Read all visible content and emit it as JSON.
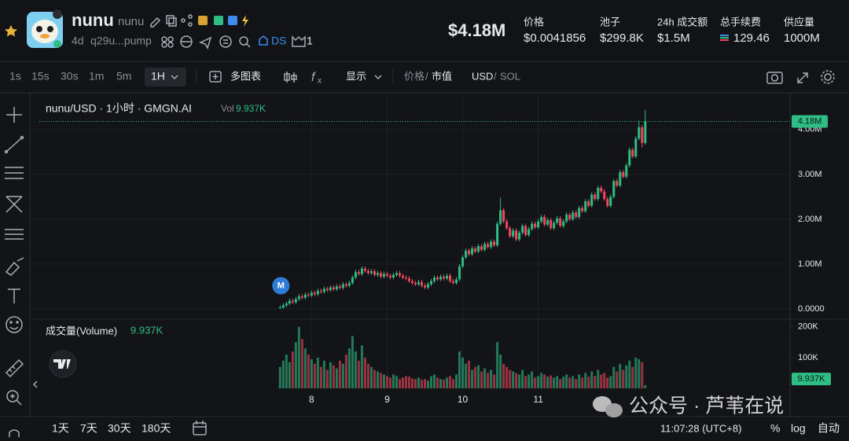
{
  "header": {
    "name": "nunu",
    "symbol": "nunu",
    "age": "4d",
    "address": "q29u...pump",
    "ds": "DS",
    "badge_count": "1",
    "market_cap": "$4.18M",
    "stats": [
      {
        "label": "价格",
        "value": "$0.0041856"
      },
      {
        "label": "池子",
        "value": "$299.8K"
      },
      {
        "label": "24h 成交额",
        "value": "$1.5M"
      },
      {
        "label": "总手续费",
        "value": "129.46"
      },
      {
        "label": "供应量",
        "value": "1000M"
      }
    ]
  },
  "toolbar": {
    "intervals": [
      "1s",
      "15s",
      "30s",
      "1m",
      "5m"
    ],
    "active_interval": "1H",
    "multi_chart": "多图表",
    "display": "显示",
    "price": "价格",
    "slash": "/",
    "mcap": "市值",
    "usd": "USD",
    "sol": "SOL"
  },
  "chart_data": {
    "type": "candlestick",
    "title": "nunu/USD · 1小时 · GMGN.AI",
    "vol_prefix": "Vol",
    "vol_label": "9.937K",
    "volume_title": "成交量(Volume)",
    "last_label": "4.18M",
    "marker": {
      "label": "M",
      "x": -10
    },
    "up_color": "#2ebd85",
    "down_color": "#f6465d",
    "grid": true,
    "xlim": [
      -86.5,
      152
    ],
    "xticks": [
      {
        "value": 0,
        "label": "8"
      },
      {
        "value": 24,
        "label": "9"
      },
      {
        "value": 48,
        "label": "10"
      },
      {
        "value": 72,
        "label": "11"
      }
    ],
    "ylim": [
      -0.21,
      4.75
    ],
    "yticks": [
      {
        "value": 0,
        "label": "0.0000"
      },
      {
        "value": 1,
        "label": "1.00M"
      },
      {
        "value": 2,
        "label": "2.00M"
      },
      {
        "value": 3,
        "label": "3.00M"
      },
      {
        "value": 4,
        "label": "4.00M"
      }
    ],
    "volume_lim": [
      0,
      220
    ],
    "volume_ticks": [
      {
        "value": 100,
        "label": "100K"
      },
      {
        "value": 200,
        "label": "200K"
      }
    ],
    "x": [
      -10,
      -9,
      -8,
      -7,
      -6,
      -5,
      -4,
      -3,
      -2,
      -1,
      0,
      1,
      2,
      3,
      4,
      5,
      6,
      7,
      8,
      9,
      10,
      11,
      12,
      13,
      14,
      15,
      16,
      17,
      18,
      19,
      20,
      21,
      22,
      23,
      24,
      25,
      26,
      27,
      28,
      29,
      30,
      31,
      32,
      33,
      34,
      35,
      36,
      37,
      38,
      39,
      40,
      41,
      42,
      43,
      44,
      45,
      46,
      47,
      48,
      49,
      50,
      51,
      52,
      53,
      54,
      55,
      56,
      57,
      58,
      59,
      60,
      61,
      62,
      63,
      64,
      65,
      66,
      67,
      68,
      69,
      70,
      71,
      72,
      73,
      74,
      75,
      76,
      77,
      78,
      79,
      80,
      81,
      82,
      83,
      84,
      85,
      86,
      87,
      88,
      89,
      90,
      91,
      92,
      93,
      94,
      95,
      96,
      97,
      98,
      99,
      100,
      101,
      102,
      103,
      104,
      105,
      106
    ],
    "open": [
      0.02,
      0.03,
      0.08,
      0.12,
      0.18,
      0.15,
      0.22,
      0.28,
      0.25,
      0.32,
      0.3,
      0.36,
      0.33,
      0.4,
      0.38,
      0.45,
      0.42,
      0.48,
      0.44,
      0.5,
      0.47,
      0.55,
      0.52,
      0.58,
      0.7,
      0.82,
      0.78,
      0.9,
      0.85,
      0.8,
      0.84,
      0.76,
      0.8,
      0.72,
      0.78,
      0.74,
      0.7,
      0.76,
      0.8,
      0.74,
      0.7,
      0.68,
      0.62,
      0.58,
      0.55,
      0.6,
      0.52,
      0.48,
      0.55,
      0.62,
      0.7,
      0.66,
      0.72,
      0.68,
      0.74,
      0.62,
      0.58,
      0.66,
      0.95,
      1.15,
      1.3,
      1.22,
      1.35,
      1.28,
      1.4,
      1.32,
      1.45,
      1.38,
      1.5,
      1.42,
      1.9,
      2.2,
      1.95,
      1.8,
      1.62,
      1.75,
      1.55,
      1.7,
      1.85,
      1.65,
      1.78,
      1.9,
      1.82,
      1.95,
      2.05,
      1.88,
      1.98,
      1.8,
      1.92,
      2.02,
      1.85,
      1.95,
      2.1,
      2.0,
      2.15,
      2.05,
      2.25,
      2.18,
      2.4,
      2.3,
      2.55,
      2.45,
      2.7,
      2.62,
      2.45,
      2.3,
      2.5,
      2.85,
      2.75,
      3.05,
      2.95,
      3.2,
      3.55,
      3.4,
      3.8,
      4.05,
      3.7
    ],
    "high": [
      0.08,
      0.13,
      0.17,
      0.23,
      0.23,
      0.27,
      0.33,
      0.33,
      0.37,
      0.37,
      0.41,
      0.41,
      0.45,
      0.45,
      0.5,
      0.5,
      0.53,
      0.53,
      0.55,
      0.55,
      0.6,
      0.6,
      0.63,
      0.75,
      0.87,
      0.87,
      0.95,
      0.95,
      0.9,
      0.89,
      0.89,
      0.85,
      0.85,
      0.83,
      0.83,
      0.79,
      0.81,
      0.85,
      0.85,
      0.79,
      0.75,
      0.73,
      0.67,
      0.63,
      0.65,
      0.65,
      0.57,
      0.6,
      0.67,
      0.75,
      0.75,
      0.77,
      0.77,
      0.79,
      0.79,
      0.67,
      0.71,
      1.0,
      1.2,
      1.35,
      1.35,
      1.4,
      1.4,
      1.45,
      1.45,
      1.5,
      1.5,
      1.55,
      1.55,
      1.95,
      2.48,
      2.25,
      2.0,
      1.85,
      1.8,
      1.8,
      1.75,
      1.9,
      1.9,
      1.83,
      1.95,
      1.95,
      2.0,
      2.1,
      2.1,
      2.03,
      2.03,
      1.97,
      2.07,
      2.07,
      2.0,
      2.15,
      2.15,
      2.2,
      2.2,
      2.3,
      2.3,
      2.45,
      2.45,
      2.6,
      2.6,
      2.75,
      2.75,
      2.67,
      2.5,
      2.55,
      2.9,
      2.9,
      3.1,
      3.1,
      3.25,
      3.6,
      3.6,
      3.85,
      4.2,
      4.1,
      4.44
    ],
    "low": [
      0.01,
      0.01,
      0.04,
      0.08,
      0.11,
      0.11,
      0.18,
      0.21,
      0.21,
      0.26,
      0.26,
      0.29,
      0.29,
      0.34,
      0.34,
      0.38,
      0.38,
      0.4,
      0.4,
      0.43,
      0.43,
      0.48,
      0.48,
      0.54,
      0.66,
      0.74,
      0.74,
      0.81,
      0.76,
      0.76,
      0.72,
      0.72,
      0.68,
      0.68,
      0.7,
      0.66,
      0.66,
      0.72,
      0.7,
      0.66,
      0.64,
      0.58,
      0.54,
      0.51,
      0.51,
      0.48,
      0.44,
      0.44,
      0.51,
      0.58,
      0.62,
      0.62,
      0.64,
      0.64,
      0.58,
      0.54,
      0.54,
      0.62,
      0.91,
      1.11,
      1.18,
      1.18,
      1.24,
      1.24,
      1.28,
      1.28,
      1.34,
      1.34,
      1.38,
      1.38,
      1.86,
      1.91,
      1.76,
      1.58,
      1.58,
      1.51,
      1.51,
      1.66,
      1.61,
      1.61,
      1.74,
      1.78,
      1.78,
      1.91,
      1.84,
      1.84,
      1.76,
      1.76,
      1.88,
      1.81,
      1.81,
      1.91,
      1.96,
      1.96,
      2.01,
      2.01,
      2.14,
      2.14,
      2.26,
      2.26,
      2.41,
      2.41,
      2.58,
      2.41,
      2.26,
      2.26,
      2.46,
      2.71,
      2.71,
      2.91,
      2.91,
      3.16,
      3.36,
      3.36,
      3.76,
      3.6,
      3.66
    ],
    "close": [
      0.03,
      0.08,
      0.12,
      0.18,
      0.15,
      0.22,
      0.28,
      0.25,
      0.32,
      0.3,
      0.36,
      0.33,
      0.4,
      0.38,
      0.45,
      0.42,
      0.48,
      0.44,
      0.5,
      0.47,
      0.55,
      0.52,
      0.58,
      0.7,
      0.82,
      0.78,
      0.9,
      0.85,
      0.8,
      0.84,
      0.76,
      0.8,
      0.72,
      0.78,
      0.74,
      0.7,
      0.76,
      0.8,
      0.74,
      0.7,
      0.68,
      0.62,
      0.58,
      0.55,
      0.6,
      0.52,
      0.48,
      0.55,
      0.62,
      0.7,
      0.66,
      0.72,
      0.68,
      0.74,
      0.62,
      0.58,
      0.66,
      0.95,
      1.15,
      1.3,
      1.22,
      1.35,
      1.28,
      1.4,
      1.32,
      1.45,
      1.38,
      1.5,
      1.42,
      1.9,
      2.2,
      1.95,
      1.8,
      1.62,
      1.75,
      1.55,
      1.7,
      1.85,
      1.65,
      1.78,
      1.9,
      1.82,
      1.95,
      2.05,
      1.88,
      1.98,
      1.8,
      1.92,
      2.02,
      1.85,
      1.95,
      2.1,
      2.0,
      2.15,
      2.05,
      2.25,
      2.18,
      2.4,
      2.3,
      2.55,
      2.45,
      2.7,
      2.62,
      2.45,
      2.3,
      2.5,
      2.85,
      2.75,
      3.05,
      2.95,
      3.2,
      3.55,
      3.4,
      3.8,
      4.05,
      3.7,
      4.18
    ],
    "volume": [
      70,
      90,
      110,
      85,
      120,
      150,
      200,
      160,
      130,
      110,
      95,
      80,
      100,
      70,
      90,
      60,
      85,
      75,
      65,
      90,
      80,
      110,
      130,
      170,
      120,
      90,
      140,
      100,
      80,
      70,
      60,
      55,
      50,
      45,
      40,
      35,
      45,
      40,
      30,
      35,
      40,
      38,
      32,
      30,
      35,
      28,
      30,
      25,
      40,
      45,
      35,
      30,
      28,
      35,
      40,
      30,
      45,
      120,
      100,
      80,
      90,
      60,
      70,
      75,
      55,
      65,
      50,
      60,
      45,
      150,
      110,
      80,
      70,
      60,
      55,
      50,
      45,
      60,
      40,
      45,
      55,
      35,
      40,
      50,
      45,
      38,
      42,
      35,
      40,
      30,
      38,
      45,
      35,
      40,
      30,
      45,
      35,
      50,
      38,
      55,
      40,
      60,
      45,
      50,
      35,
      40,
      70,
      55,
      80,
      60,
      75,
      90,
      70,
      100,
      95,
      85,
      9.937
    ]
  },
  "bottom_bar": {
    "ranges": [
      "1天",
      "7天",
      "30天",
      "180天"
    ],
    "clock": "11:07:28 (UTC+8)",
    "percent": "%",
    "log": "log",
    "auto": "自动"
  },
  "watermark": "公众号 · 芦苇在说"
}
